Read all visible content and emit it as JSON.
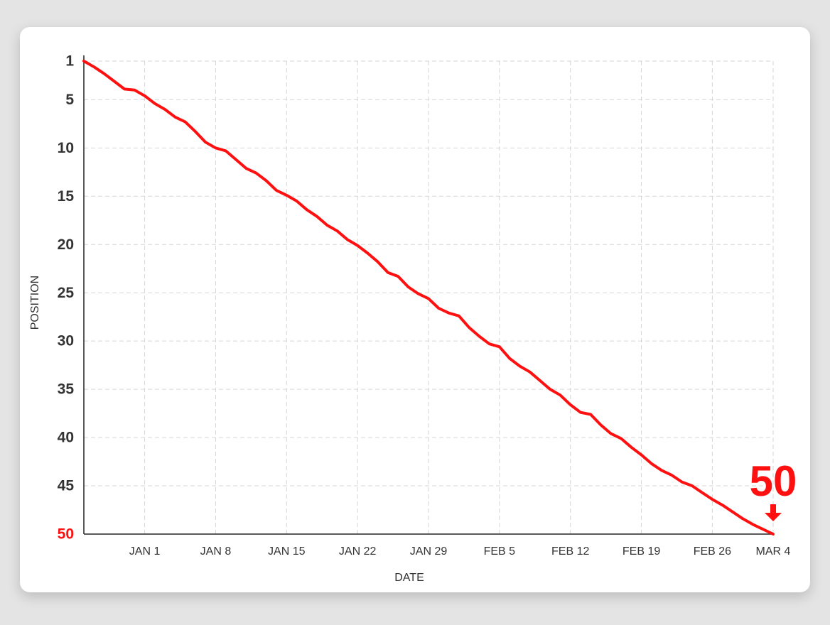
{
  "chart_data": {
    "type": "line",
    "x_label": "DATE",
    "y_label": "POSITION",
    "x": [
      -6,
      -5,
      -4,
      -3,
      -2,
      -1,
      0,
      1,
      2,
      3,
      4,
      5,
      6,
      7,
      8,
      9,
      10,
      11,
      12,
      13,
      14,
      15,
      16,
      17,
      18,
      19,
      20,
      21,
      22,
      23,
      24,
      25,
      26,
      27,
      28,
      29,
      30,
      31,
      32,
      33,
      34,
      35,
      36,
      37,
      38,
      39,
      40,
      41,
      42,
      43,
      44,
      45,
      46,
      47,
      48,
      49,
      50,
      51,
      52,
      53,
      54,
      55,
      56,
      57,
      58,
      59,
      60,
      61,
      62
    ],
    "series": [
      {
        "name": "Position",
        "color": "#ff1010",
        "values": [
          1.0,
          1.6,
          2.3,
          3.1,
          3.9,
          4.0,
          4.6,
          5.4,
          6.0,
          6.8,
          7.3,
          8.3,
          9.4,
          10.0,
          10.3,
          11.2,
          12.1,
          12.6,
          13.4,
          14.4,
          14.9,
          15.5,
          16.4,
          17.1,
          18.0,
          18.6,
          19.5,
          20.1,
          20.9,
          21.8,
          22.9,
          23.3,
          24.4,
          25.1,
          25.6,
          26.6,
          27.1,
          27.4,
          28.6,
          29.5,
          30.3,
          30.6,
          31.8,
          32.6,
          33.2,
          34.1,
          35.0,
          35.6,
          36.6,
          37.4,
          37.6,
          38.7,
          39.6,
          40.1,
          41.0,
          41.8,
          42.7,
          43.4,
          43.9,
          44.6,
          45.0,
          45.7,
          46.4,
          47.0,
          47.7,
          48.4,
          49.0,
          49.5,
          50.0
        ]
      }
    ],
    "xlim": [
      -6,
      62
    ],
    "xticks": [
      {
        "value": 0,
        "label": "JAN 1"
      },
      {
        "value": 7,
        "label": "JAN 8"
      },
      {
        "value": 14,
        "label": "JAN 15"
      },
      {
        "value": 21,
        "label": "JAN 22"
      },
      {
        "value": 28,
        "label": "JAN 29"
      },
      {
        "value": 35,
        "label": "FEB 5"
      },
      {
        "value": 42,
        "label": "FEB 12"
      },
      {
        "value": 49,
        "label": "FEB 19"
      },
      {
        "value": 56,
        "label": "FEB 26"
      },
      {
        "value": 62,
        "label": "MAR 4"
      }
    ],
    "ylim": [
      50,
      1
    ],
    "yticks": [
      1,
      5,
      10,
      15,
      20,
      25,
      30,
      35,
      40,
      45,
      50
    ],
    "grid": true
  }
}
